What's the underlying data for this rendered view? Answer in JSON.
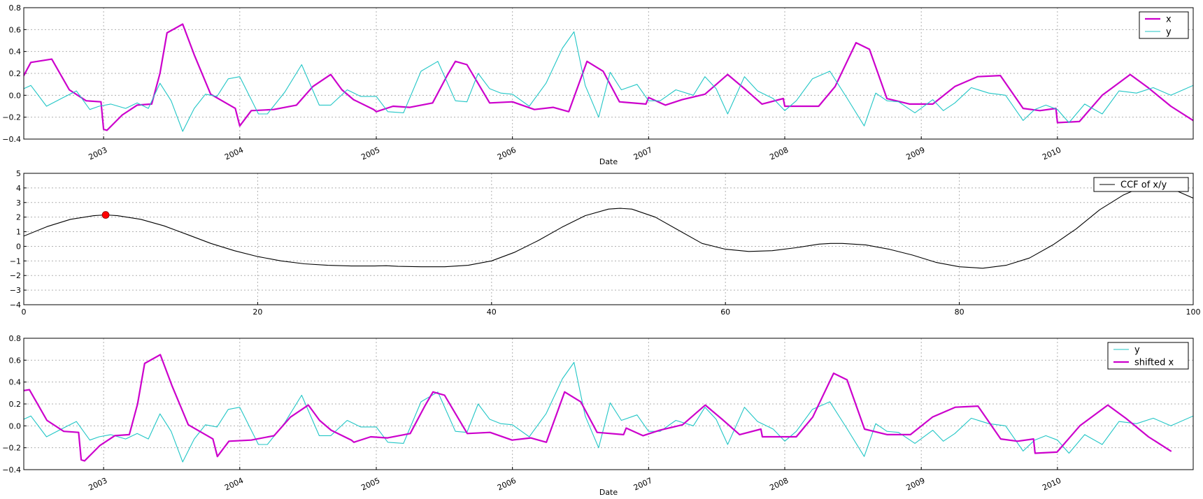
{
  "colors": {
    "x": "#cc00cc",
    "y": "#22c6c6",
    "ccf": "#000000",
    "peak": "#ff0000"
  },
  "chart_data": [
    {
      "type": "line",
      "xlabel": "Date",
      "ylabel": "",
      "x_axis": "date",
      "xlim": [
        "2002-06-01",
        "2010-12-31"
      ],
      "ylim": [
        -0.4,
        0.8
      ],
      "yticks": [
        "0.8",
        "0.6",
        "0.4",
        "0.2",
        "0.0",
        "−0.2",
        "−0.4"
      ],
      "xticks": [
        "2003",
        "2004",
        "2005",
        "2006",
        "2007",
        "2008",
        "2009",
        "2010"
      ],
      "grid": true,
      "legend_position": "top-right",
      "series": [
        {
          "name": "x",
          "color": "#cc00cc",
          "x": [
            "2002-06-01",
            "2002-06-20",
            "2002-08-15",
            "2002-10-01",
            "2002-11-15",
            "2002-12-25",
            "2003-01-01",
            "2003-01-10",
            "2003-02-20",
            "2003-04-01",
            "2003-05-10",
            "2003-06-01",
            "2003-06-20",
            "2003-08-01",
            "2003-09-01",
            "2003-10-15",
            "2003-12-20",
            "2004-01-01",
            "2004-02-01",
            "2004-04-01",
            "2004-06-01",
            "2004-07-15",
            "2004-09-01",
            "2004-10-01",
            "2004-11-01",
            "2004-12-25",
            "2005-01-01",
            "2005-02-15",
            "2005-04-01",
            "2005-06-01",
            "2005-07-10",
            "2005-08-01",
            "2005-09-01",
            "2005-11-01",
            "2006-01-01",
            "2006-03-01",
            "2006-04-20",
            "2006-06-01",
            "2006-07-20",
            "2006-09-01",
            "2006-10-15",
            "2006-12-25",
            "2007-01-01",
            "2007-02-15",
            "2007-04-01",
            "2007-06-01",
            "2007-08-01",
            "2007-09-15",
            "2007-11-01",
            "2007-12-28",
            "2008-01-01",
            "2008-04-01",
            "2008-05-15",
            "2008-07-10",
            "2008-08-15",
            "2008-10-01",
            "2008-12-01",
            "2009-02-01",
            "2009-04-01",
            "2009-06-01",
            "2009-08-01",
            "2009-10-01",
            "2009-11-15",
            "2009-12-28",
            "2010-01-01",
            "2010-03-01",
            "2010-05-01",
            "2010-07-15",
            "2010-09-01",
            "2010-11-01",
            "2010-12-31"
          ],
          "y": [
            0.18,
            0.3,
            0.33,
            0.05,
            -0.05,
            -0.06,
            -0.31,
            -0.32,
            -0.18,
            -0.09,
            -0.08,
            0.2,
            0.57,
            0.65,
            0.37,
            0.01,
            -0.12,
            -0.28,
            -0.14,
            -0.13,
            -0.09,
            0.08,
            0.19,
            0.05,
            -0.04,
            -0.13,
            -0.15,
            -0.1,
            -0.11,
            -0.07,
            0.18,
            0.31,
            0.28,
            -0.07,
            -0.06,
            -0.13,
            -0.11,
            -0.15,
            0.31,
            0.22,
            -0.06,
            -0.08,
            -0.02,
            -0.09,
            -0.04,
            0.01,
            0.19,
            0.06,
            -0.08,
            -0.03,
            -0.1,
            -0.1,
            0.08,
            0.48,
            0.42,
            -0.03,
            -0.08,
            -0.08,
            0.08,
            0.17,
            0.18,
            -0.12,
            -0.14,
            -0.12,
            -0.25,
            -0.24,
            0.0,
            0.19,
            0.07,
            -0.1,
            -0.23
          ]
        },
        {
          "name": "y",
          "color": "#22c6c6",
          "x": [
            "2002-06-01",
            "2002-06-20",
            "2002-08-01",
            "2002-09-15",
            "2002-10-20",
            "2002-11-25",
            "2002-12-20",
            "2003-01-20",
            "2003-03-01",
            "2003-04-01",
            "2003-05-01",
            "2003-06-01",
            "2003-07-01",
            "2003-08-01",
            "2003-09-01",
            "2003-10-01",
            "2003-11-01",
            "2003-12-01",
            "2004-01-01",
            "2004-02-20",
            "2004-03-15",
            "2004-05-01",
            "2004-06-15",
            "2004-08-01",
            "2004-09-01",
            "2004-10-15",
            "2004-11-20",
            "2005-01-01",
            "2005-02-01",
            "2005-03-15",
            "2005-05-01",
            "2005-06-15",
            "2005-08-01",
            "2005-09-01",
            "2005-10-01",
            "2005-11-01",
            "2005-12-01",
            "2006-01-01",
            "2006-02-15",
            "2006-04-01",
            "2006-05-15",
            "2006-06-15",
            "2006-07-15",
            "2006-08-20",
            "2006-09-20",
            "2006-10-20",
            "2006-12-01",
            "2007-01-01",
            "2007-02-01",
            "2007-03-15",
            "2007-05-01",
            "2007-06-01",
            "2007-07-01",
            "2007-08-01",
            "2007-09-15",
            "2007-10-20",
            "2007-12-01",
            "2008-01-01",
            "2008-02-01",
            "2008-03-15",
            "2008-05-01",
            "2008-06-15",
            "2008-08-01",
            "2008-09-01",
            "2008-10-01",
            "2008-11-01",
            "2008-12-15",
            "2009-02-01",
            "2009-03-01",
            "2009-04-01",
            "2009-05-15",
            "2009-07-01",
            "2009-08-15",
            "2009-10-01",
            "2009-11-01",
            "2009-12-01",
            "2010-01-01",
            "2010-02-01",
            "2010-03-15",
            "2010-05-01",
            "2010-06-15",
            "2010-08-01",
            "2010-09-15",
            "2010-11-01",
            "2010-12-31"
          ],
          "y": [
            0.06,
            0.09,
            -0.1,
            -0.02,
            0.04,
            -0.13,
            -0.1,
            -0.08,
            -0.12,
            -0.07,
            -0.12,
            0.11,
            -0.05,
            -0.33,
            -0.12,
            0.01,
            -0.01,
            0.15,
            0.17,
            -0.17,
            -0.17,
            0.03,
            0.28,
            -0.09,
            -0.09,
            0.05,
            -0.01,
            -0.01,
            -0.15,
            -0.16,
            0.22,
            0.31,
            -0.05,
            -0.06,
            0.2,
            0.06,
            0.02,
            0.01,
            -0.1,
            0.11,
            0.43,
            0.58,
            0.09,
            -0.2,
            0.21,
            0.05,
            0.1,
            -0.05,
            -0.05,
            0.05,
            0.0,
            0.17,
            0.06,
            -0.17,
            0.17,
            0.04,
            -0.03,
            -0.14,
            -0.05,
            0.15,
            0.22,
            -0.02,
            -0.28,
            0.02,
            -0.05,
            -0.06,
            -0.16,
            -0.04,
            -0.14,
            -0.07,
            0.07,
            0.02,
            0.0,
            -0.23,
            -0.13,
            -0.09,
            -0.13,
            -0.25,
            -0.08,
            -0.17,
            0.04,
            0.02,
            0.07,
            0.0,
            0.09
          ]
        }
      ]
    },
    {
      "type": "line",
      "xlabel": "",
      "ylabel": "",
      "xlim": [
        0,
        100
      ],
      "ylim": [
        -4,
        5
      ],
      "xticks": [
        "0",
        "20",
        "40",
        "60",
        "80",
        "100"
      ],
      "yticks": [
        "5",
        "4",
        "3",
        "2",
        "1",
        "0",
        "−1",
        "−2",
        "−3",
        "−4"
      ],
      "grid": true,
      "legend_position": "top-right",
      "series": [
        {
          "name": "CCF of   x/y",
          "color": "#000000",
          "x": [
            0,
            2,
            4,
            6,
            7,
            8,
            10,
            12,
            14,
            16,
            18,
            20,
            22,
            24,
            26,
            28,
            30,
            31,
            32,
            34,
            36,
            38,
            40,
            42,
            44,
            46,
            48,
            50,
            51,
            52,
            54,
            56,
            58,
            60,
            62,
            64,
            66,
            68,
            69,
            70,
            72,
            74,
            76,
            78,
            80,
            82,
            84,
            86,
            88,
            90,
            92,
            94,
            96,
            98,
            100
          ],
          "y": [
            0.7,
            1.35,
            1.85,
            2.1,
            2.15,
            2.1,
            1.85,
            1.4,
            0.8,
            0.2,
            -0.3,
            -0.7,
            -1.0,
            -1.2,
            -1.3,
            -1.35,
            -1.35,
            -1.33,
            -1.37,
            -1.4,
            -1.4,
            -1.3,
            -1.0,
            -0.4,
            0.4,
            1.3,
            2.1,
            2.55,
            2.6,
            2.55,
            2.0,
            1.1,
            0.2,
            -0.2,
            -0.35,
            -0.3,
            -0.1,
            0.15,
            0.2,
            0.2,
            0.1,
            -0.2,
            -0.6,
            -1.1,
            -1.4,
            -1.5,
            -1.3,
            -0.8,
            0.1,
            1.2,
            2.5,
            3.5,
            4.2,
            4.0,
            3.3
          ]
        }
      ],
      "marker": {
        "x": 7,
        "y": 2.15,
        "color": "#ff0000"
      }
    },
    {
      "type": "line",
      "xlabel": "Date",
      "ylabel": "",
      "x_axis": "date",
      "xlim": [
        "2002-06-01",
        "2010-12-31"
      ],
      "ylim": [
        -0.4,
        0.8
      ],
      "yticks": [
        "0.8",
        "0.6",
        "0.4",
        "0.2",
        "0.0",
        "−0.2",
        "−0.4"
      ],
      "xticks": [
        "2003",
        "2004",
        "2005",
        "2006",
        "2007",
        "2008",
        "2009",
        "2010"
      ],
      "grid": true,
      "legend_position": "top-right",
      "series": [
        {
          "name": "y",
          "color": "#22c6c6",
          "same_as": "panel1.y"
        },
        {
          "name": "shifted x",
          "color": "#cc00cc",
          "shift_days": -60
        }
      ]
    }
  ]
}
